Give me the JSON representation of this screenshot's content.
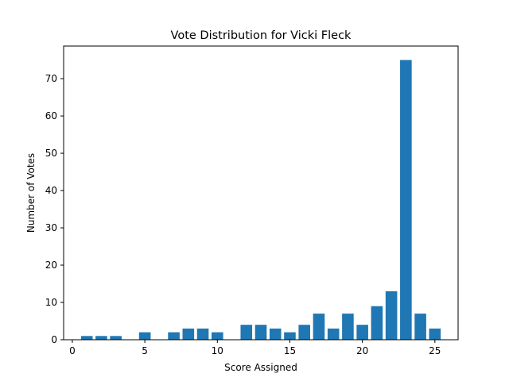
{
  "chart_data": {
    "type": "bar",
    "title": "Vote Distribution for Vicki Fleck",
    "xlabel": "Score Assigned",
    "ylabel": "Number of Votes",
    "xlim": [
      -0.6,
      26.6
    ],
    "ylim": [
      0,
      78.75
    ],
    "xticks": [
      0,
      5,
      10,
      15,
      20,
      25
    ],
    "yticks": [
      0,
      10,
      20,
      30,
      40,
      50,
      60,
      70
    ],
    "bar_color": "#1f77b4",
    "grid": false,
    "x": [
      1,
      2,
      3,
      5,
      7,
      8,
      9,
      10,
      12,
      13,
      14,
      15,
      16,
      17,
      18,
      19,
      20,
      21,
      22,
      23,
      24,
      25
    ],
    "values": [
      1,
      1,
      1,
      2,
      2,
      3,
      3,
      2,
      4,
      4,
      3,
      2,
      4,
      7,
      3,
      7,
      4,
      9,
      13,
      75,
      7,
      3
    ]
  }
}
